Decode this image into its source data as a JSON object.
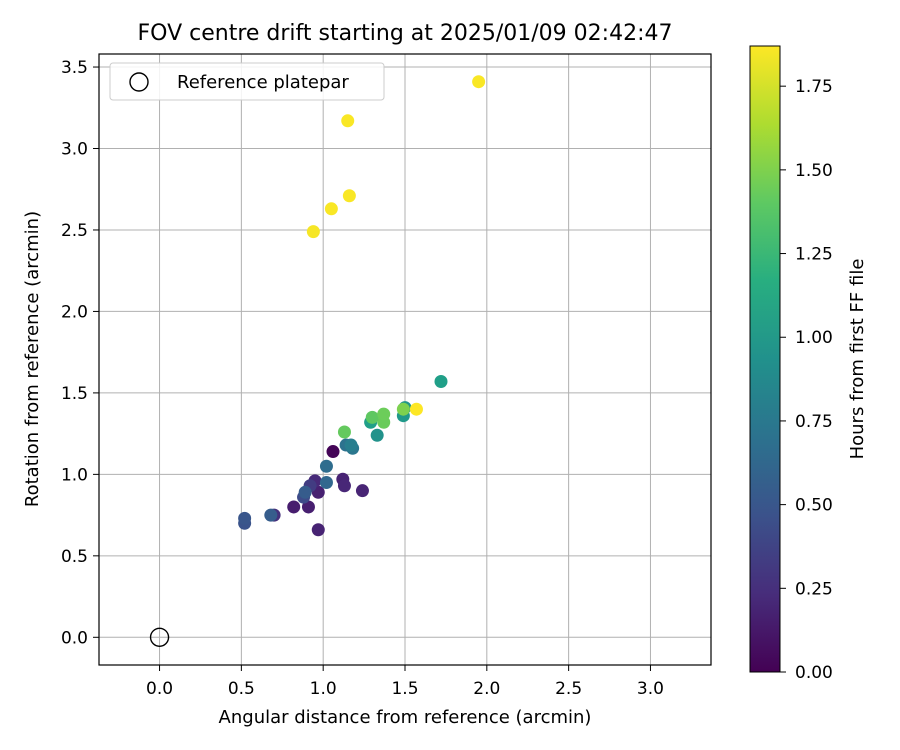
{
  "chart_data": {
    "type": "scatter",
    "title": "FOV centre drift starting at 2025/01/09 02:42:47",
    "xlabel": "Angular distance from reference (arcmin)",
    "ylabel": "Rotation from reference (arcmin)",
    "xlim": [
      -0.37,
      3.37
    ],
    "ylim": [
      -0.17,
      3.58
    ],
    "xticks": [
      0.0,
      0.5,
      1.0,
      1.5,
      2.0,
      2.5,
      3.0
    ],
    "xtick_labels": [
      "0.0",
      "0.5",
      "1.0",
      "1.5",
      "2.0",
      "2.5",
      "3.0"
    ],
    "yticks": [
      0.0,
      0.5,
      1.0,
      1.5,
      2.0,
      2.5,
      3.0,
      3.5
    ],
    "ytick_labels": [
      "0.0",
      "0.5",
      "1.0",
      "1.5",
      "2.0",
      "2.5",
      "3.0",
      "3.5"
    ],
    "grid": true,
    "legend": {
      "position": "top-left",
      "label": "Reference platepar"
    },
    "reference_point": {
      "x": 0.0,
      "y": 0.0
    },
    "colorbar": {
      "label": "Hours from first FF file",
      "min": 0.0,
      "max": 1.87,
      "ticks": [
        0.0,
        0.25,
        0.5,
        0.75,
        1.0,
        1.25,
        1.5,
        1.75
      ],
      "tick_labels": [
        "0.00",
        "0.25",
        "0.50",
        "0.75",
        "1.00",
        "1.25",
        "1.50",
        "1.75"
      ],
      "colormap": "viridis"
    },
    "points": [
      {
        "x": 1.06,
        "y": 1.14,
        "c": 0.02
      },
      {
        "x": 0.82,
        "y": 0.8,
        "c": 0.15
      },
      {
        "x": 0.91,
        "y": 0.8,
        "c": 0.16
      },
      {
        "x": 0.97,
        "y": 0.66,
        "c": 0.18
      },
      {
        "x": 0.97,
        "y": 0.89,
        "c": 0.17
      },
      {
        "x": 1.12,
        "y": 0.97,
        "c": 0.18
      },
      {
        "x": 1.13,
        "y": 0.93,
        "c": 0.2
      },
      {
        "x": 1.24,
        "y": 0.9,
        "c": 0.19
      },
      {
        "x": 0.95,
        "y": 0.96,
        "c": 0.22
      },
      {
        "x": 0.7,
        "y": 0.75,
        "c": 0.26
      },
      {
        "x": 0.92,
        "y": 0.93,
        "c": 0.33
      },
      {
        "x": 0.88,
        "y": 0.86,
        "c": 0.42
      },
      {
        "x": 0.52,
        "y": 0.7,
        "c": 0.48
      },
      {
        "x": 0.52,
        "y": 0.73,
        "c": 0.5
      },
      {
        "x": 0.68,
        "y": 0.75,
        "c": 0.55
      },
      {
        "x": 0.89,
        "y": 0.89,
        "c": 0.54
      },
      {
        "x": 1.02,
        "y": 0.95,
        "c": 0.62
      },
      {
        "x": 1.02,
        "y": 1.05,
        "c": 0.66
      },
      {
        "x": 1.14,
        "y": 1.18,
        "c": 0.7
      },
      {
        "x": 1.18,
        "y": 1.16,
        "c": 0.74
      },
      {
        "x": 1.17,
        "y": 1.18,
        "c": 0.8
      },
      {
        "x": 1.33,
        "y": 1.24,
        "c": 0.95
      },
      {
        "x": 1.29,
        "y": 1.32,
        "c": 1.05
      },
      {
        "x": 1.49,
        "y": 1.36,
        "c": 1.0
      },
      {
        "x": 1.5,
        "y": 1.41,
        "c": 0.98
      },
      {
        "x": 1.72,
        "y": 1.57,
        "c": 1.05
      },
      {
        "x": 1.37,
        "y": 1.32,
        "c": 1.44
      },
      {
        "x": 1.3,
        "y": 1.35,
        "c": 1.4
      },
      {
        "x": 1.37,
        "y": 1.37,
        "c": 1.45
      },
      {
        "x": 1.13,
        "y": 1.26,
        "c": 1.42
      },
      {
        "x": 1.49,
        "y": 1.4,
        "c": 1.5
      },
      {
        "x": 1.57,
        "y": 1.4,
        "c": 1.87
      },
      {
        "x": 0.94,
        "y": 2.49,
        "c": 1.85
      },
      {
        "x": 1.05,
        "y": 2.63,
        "c": 1.86
      },
      {
        "x": 1.16,
        "y": 2.71,
        "c": 1.86
      },
      {
        "x": 1.15,
        "y": 3.17,
        "c": 1.86
      },
      {
        "x": 1.95,
        "y": 3.41,
        "c": 1.86
      }
    ]
  }
}
